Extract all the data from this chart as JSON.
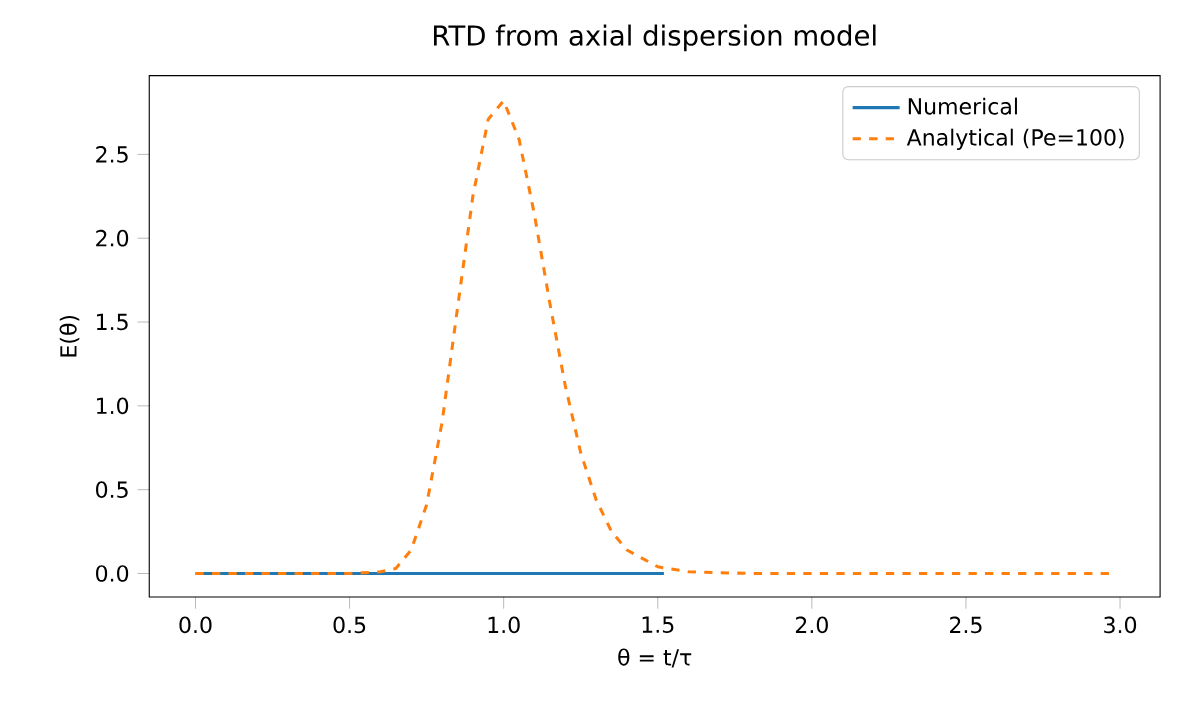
{
  "chart_data": {
    "type": "line",
    "title": "RTD from axial dispersion model",
    "xlabel": "θ = t/τ",
    "ylabel": "E(θ)",
    "xlim": [
      -0.15,
      3.13
    ],
    "ylim": [
      -0.14,
      2.97
    ],
    "xticks": [
      {
        "value": 0,
        "label": "0.0"
      },
      {
        "value": 0.5,
        "label": "0.5"
      },
      {
        "value": 1,
        "label": "1.0"
      },
      {
        "value": 1.5,
        "label": "1.5"
      },
      {
        "value": 2,
        "label": "2.0"
      },
      {
        "value": 2.5,
        "label": "2.5"
      },
      {
        "value": 3,
        "label": "3.0"
      }
    ],
    "yticks": [
      {
        "value": 0,
        "label": "0.0"
      },
      {
        "value": 0.5,
        "label": "0.5"
      },
      {
        "value": 1,
        "label": "1.0"
      },
      {
        "value": 1.5,
        "label": "1.5"
      },
      {
        "value": 2,
        "label": "2.0"
      },
      {
        "value": 2.5,
        "label": "2.5"
      }
    ],
    "legend": "top right",
    "grid": false,
    "series": [
      {
        "name": "Numerical",
        "color": "#1f77b4",
        "line_style": "solid",
        "x": [
          0,
          0.5,
          1.0,
          1.52
        ],
        "values": [
          0,
          0,
          0,
          0
        ]
      },
      {
        "name": "Analytical (Pe=100)",
        "color": "#ff7f0e",
        "line_style": "dashed",
        "x": [
          0,
          0.3,
          0.5,
          0.6,
          0.65,
          0.7,
          0.75,
          0.8,
          0.85,
          0.9,
          0.95,
          1.0,
          1.05,
          1.1,
          1.15,
          1.2,
          1.25,
          1.3,
          1.35,
          1.4,
          1.5,
          1.6,
          1.8,
          2.0,
          2.5,
          2.98
        ],
        "values": [
          0,
          0,
          0,
          0.01,
          0.03,
          0.14,
          0.41,
          0.9,
          1.58,
          2.25,
          2.71,
          2.82,
          2.59,
          2.14,
          1.61,
          1.12,
          0.72,
          0.44,
          0.25,
          0.14,
          0.04,
          0.01,
          0,
          0,
          0,
          0
        ]
      }
    ]
  }
}
